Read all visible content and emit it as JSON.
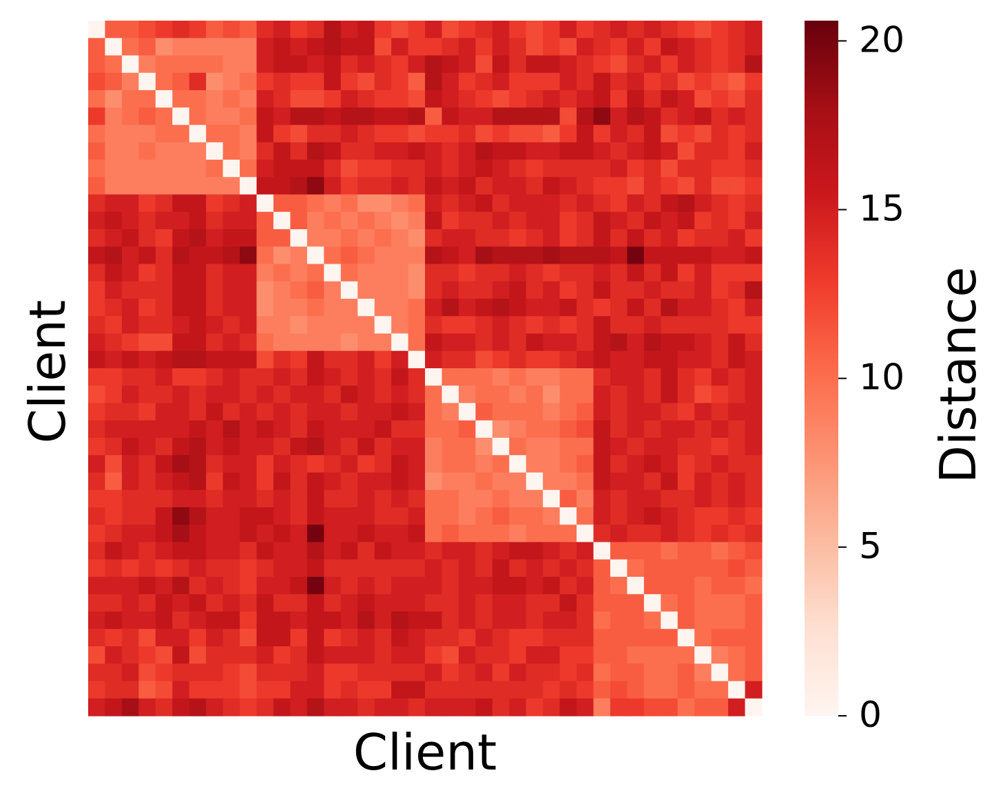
{
  "chart_data": {
    "type": "heatmap",
    "xlabel": "Client",
    "ylabel": "Client",
    "colorbar_label": "Distance",
    "colormap": "Reds",
    "zlim": [
      0,
      20.6
    ],
    "zticks": [
      0,
      5,
      10,
      15,
      20
    ],
    "z": [
      [
        0,
        11,
        11,
        12,
        13,
        14,
        13,
        11,
        12,
        11,
        14,
        15,
        13,
        14,
        17,
        15,
        16,
        13,
        12,
        13,
        15,
        12,
        13,
        14,
        15,
        13,
        12,
        13,
        15,
        13,
        14,
        15,
        14,
        15,
        14,
        13,
        12,
        13,
        14,
        15
      ],
      [
        11,
        0,
        10,
        11,
        8,
        9,
        9,
        9,
        9,
        9,
        15,
        16,
        15,
        16,
        17,
        16,
        16,
        12,
        15,
        13,
        13,
        14,
        15,
        13,
        15,
        14,
        12,
        13,
        12,
        15,
        14,
        13,
        15,
        13,
        16,
        15,
        14,
        13,
        14,
        15
      ],
      [
        11,
        10,
        0,
        9,
        10,
        10,
        10,
        10,
        9,
        9,
        15,
        16,
        16,
        15,
        16,
        14,
        15,
        14,
        13,
        15,
        17,
        16,
        15,
        12,
        16,
        14,
        16,
        16,
        15,
        14,
        13,
        12,
        14,
        15,
        13,
        15,
        14,
        13,
        14,
        17
      ],
      [
        12,
        11,
        9,
        0,
        10,
        11,
        14,
        8,
        9,
        10,
        13,
        14,
        13,
        13,
        16,
        13,
        12,
        14,
        13,
        11,
        17,
        15,
        13,
        14,
        15,
        13,
        13,
        13,
        15,
        14,
        16,
        14,
        15,
        13,
        14,
        12,
        13,
        12,
        11,
        13
      ],
      [
        10,
        8,
        10,
        10,
        0,
        10,
        10,
        9,
        10,
        9,
        15,
        14,
        12,
        12,
        13,
        15,
        14,
        13,
        13,
        12,
        16,
        15,
        14,
        13,
        12,
        13,
        14,
        15,
        14,
        15,
        16,
        13,
        16,
        14,
        16,
        15,
        12,
        13,
        12,
        14
      ],
      [
        13,
        9,
        10,
        11,
        10,
        0,
        10,
        9,
        9,
        10,
        16,
        15,
        17,
        17,
        16,
        17,
        17,
        16,
        16,
        17,
        11,
        16,
        15,
        15,
        17,
        17,
        17,
        17,
        12,
        17,
        19,
        15,
        17,
        16,
        14,
        15,
        16,
        14,
        15,
        14
      ],
      [
        10,
        9,
        9,
        9,
        10,
        10,
        0,
        10,
        10,
        9,
        16,
        13,
        12,
        14,
        14,
        15,
        14,
        13,
        13,
        12,
        13,
        13,
        14,
        12,
        13,
        12,
        12,
        11,
        13,
        16,
        13,
        15,
        14,
        16,
        12,
        13,
        12,
        14,
        13,
        14
      ],
      [
        11,
        9,
        9,
        10,
        9,
        9,
        9,
        0,
        10,
        9,
        14,
        16,
        14,
        17,
        16,
        14,
        14,
        15,
        15,
        16,
        15,
        14,
        15,
        17,
        16,
        16,
        15,
        15,
        16,
        16,
        15,
        14,
        15,
        16,
        15,
        12,
        14,
        14,
        13,
        15
      ],
      [
        10,
        9,
        9,
        9,
        9,
        9,
        9,
        10,
        0,
        10,
        15,
        16,
        16,
        16,
        14,
        12,
        13,
        13,
        14,
        14,
        15,
        14,
        15,
        16,
        15,
        14,
        13,
        14,
        14,
        14,
        14,
        15,
        13,
        14,
        12,
        14,
        14,
        13,
        13,
        14
      ],
      [
        11,
        9,
        9,
        9,
        9,
        9,
        9,
        9,
        9,
        0,
        16,
        16,
        17,
        19,
        15,
        13,
        14,
        14,
        15,
        14,
        16,
        15,
        16,
        14,
        15,
        15,
        14,
        16,
        15,
        14,
        13,
        13,
        12,
        14,
        13,
        12,
        14,
        12,
        12,
        13
      ],
      [
        14,
        15,
        15,
        13,
        14,
        16,
        16,
        13,
        14,
        15,
        0,
        11,
        11,
        10,
        9,
        10,
        8,
        8,
        9,
        10,
        15,
        14,
        15,
        16,
        14,
        15,
        15,
        15,
        14,
        15,
        14,
        13,
        15,
        14,
        16,
        17,
        15,
        14,
        13,
        14
      ],
      [
        15,
        16,
        15,
        14,
        15,
        15,
        16,
        14,
        15,
        15,
        11,
        0,
        11,
        9,
        10,
        9,
        10,
        9,
        8,
        9,
        16,
        13,
        14,
        14,
        15,
        14,
        15,
        15,
        13,
        14,
        16,
        15,
        14,
        16,
        15,
        16,
        13,
        14,
        13,
        15
      ],
      [
        14,
        15,
        16,
        14,
        13,
        16,
        17,
        15,
        16,
        16,
        11,
        11,
        0,
        9,
        9,
        10,
        9,
        10,
        9,
        8,
        14,
        15,
        15,
        14,
        14,
        13,
        14,
        15,
        13,
        14,
        16,
        14,
        16,
        14,
        15,
        13,
        14,
        14,
        15,
        13
      ],
      [
        16,
        17,
        15,
        16,
        14,
        17,
        16,
        16,
        17,
        19,
        10,
        8,
        9,
        0,
        10,
        11,
        10,
        9,
        9,
        9,
        17,
        16,
        15,
        18,
        17,
        17,
        17,
        18,
        17,
        17,
        17,
        16,
        20,
        16,
        16,
        16,
        16,
        15,
        15,
        16
      ],
      [
        14,
        16,
        15,
        13,
        14,
        16,
        16,
        14,
        15,
        15,
        9,
        10,
        9,
        10,
        0,
        10,
        9,
        9,
        9,
        8,
        14,
        14,
        13,
        14,
        14,
        15,
        14,
        13,
        14,
        14,
        15,
        14,
        16,
        14,
        16,
        13,
        15,
        13,
        13,
        13
      ],
      [
        13,
        15,
        14,
        14,
        14,
        16,
        16,
        14,
        15,
        15,
        8,
        9,
        10,
        11,
        9,
        0,
        9,
        9,
        9,
        8,
        14,
        15,
        14,
        14,
        15,
        16,
        14,
        15,
        13,
        14,
        16,
        14,
        14,
        15,
        14,
        14,
        15,
        13,
        14,
        17
      ],
      [
        13,
        14,
        15,
        13,
        14,
        16,
        16,
        14,
        15,
        15,
        8,
        9,
        9,
        10,
        9,
        9,
        0,
        9,
        9,
        10,
        15,
        17,
        15,
        16,
        17,
        16,
        15,
        15,
        16,
        14,
        13,
        14,
        16,
        14,
        17,
        15,
        15,
        14,
        13,
        15
      ],
      [
        14,
        13,
        15,
        14,
        14,
        15,
        16,
        15,
        14,
        15,
        9,
        9,
        8,
        9,
        9,
        9,
        9,
        0,
        9,
        10,
        14,
        13,
        13,
        14,
        15,
        14,
        13,
        14,
        13,
        14,
        16,
        14,
        14,
        15,
        14,
        14,
        14,
        14,
        13,
        13
      ],
      [
        15,
        14,
        13,
        12,
        12,
        16,
        16,
        14,
        15,
        14,
        10,
        9,
        9,
        9,
        9,
        8,
        9,
        9,
        0,
        10,
        16,
        15,
        15,
        14,
        15,
        14,
        16,
        15,
        15,
        14,
        16,
        17,
        15,
        17,
        16,
        16,
        15,
        14,
        16,
        14
      ],
      [
        16,
        15,
        16,
        15,
        16,
        17,
        17,
        16,
        16,
        16,
        12,
        14,
        13,
        16,
        14,
        14,
        15,
        13,
        15,
        0,
        15,
        14,
        14,
        12,
        13,
        14,
        13,
        13,
        14,
        15,
        16,
        15,
        15,
        16,
        16,
        15,
        15,
        14,
        16,
        15
      ],
      [
        13,
        13,
        14,
        14,
        15,
        13,
        13,
        14,
        15,
        14,
        14,
        15,
        14,
        16,
        15,
        14,
        15,
        14,
        16,
        14,
        0,
        10,
        10,
        10,
        9,
        10,
        9,
        9,
        10,
        10,
        14,
        15,
        15,
        14,
        16,
        14,
        13,
        15,
        14,
        15
      ],
      [
        12,
        13,
        15,
        14,
        14,
        15,
        14,
        15,
        15,
        14,
        15,
        14,
        15,
        15,
        14,
        16,
        15,
        14,
        15,
        14,
        10,
        0,
        9,
        10,
        10,
        9,
        10,
        8,
        10,
        10,
        15,
        14,
        15,
        14,
        16,
        14,
        12,
        13,
        14,
        15
      ],
      [
        13,
        14,
        14,
        13,
        15,
        15,
        14,
        16,
        14,
        15,
        14,
        15,
        14,
        15,
        15,
        14,
        15,
        15,
        16,
        15,
        10,
        9,
        0,
        11,
        10,
        10,
        10,
        9,
        10,
        11,
        15,
        14,
        15,
        15,
        14,
        13,
        15,
        14,
        15,
        15
      ],
      [
        14,
        15,
        15,
        15,
        15,
        15,
        16,
        15,
        17,
        15,
        16,
        15,
        14,
        16,
        15,
        15,
        15,
        16,
        14,
        14,
        10,
        10,
        11,
        0,
        8,
        9,
        10,
        10,
        11,
        12,
        16,
        14,
        15,
        14,
        15,
        15,
        14,
        15,
        14,
        15
      ],
      [
        13,
        14,
        16,
        15,
        14,
        16,
        17,
        15,
        16,
        15,
        15,
        14,
        16,
        17,
        15,
        14,
        16,
        14,
        15,
        15,
        9,
        10,
        10,
        8,
        0,
        10,
        9,
        9,
        10,
        10,
        16,
        15,
        14,
        15,
        15,
        14,
        14,
        13,
        14,
        15
      ],
      [
        15,
        12,
        15,
        14,
        16,
        18,
        17,
        14,
        15,
        15,
        13,
        15,
        14,
        13,
        14,
        15,
        13,
        14,
        16,
        15,
        9,
        10,
        10,
        9,
        10,
        0,
        9,
        9,
        10,
        11,
        16,
        14,
        15,
        16,
        15,
        13,
        14,
        15,
        14,
        14
      ],
      [
        14,
        11,
        15,
        14,
        15,
        16,
        17,
        13,
        16,
        15,
        13,
        16,
        14,
        16,
        15,
        14,
        15,
        15,
        16,
        15,
        8,
        9,
        9,
        10,
        9,
        9,
        0,
        9,
        9,
        10,
        16,
        15,
        15,
        14,
        16,
        13,
        15,
        14,
        15,
        14
      ],
      [
        13,
        13,
        14,
        14,
        14,
        15,
        15,
        14,
        15,
        15,
        14,
        15,
        14,
        16,
        14,
        14,
        15,
        14,
        15,
        14,
        10,
        10,
        9,
        9,
        10,
        9,
        9,
        0,
        11,
        9,
        15,
        14,
        15,
        15,
        14,
        14,
        15,
        14,
        15,
        14
      ],
      [
        14,
        13,
        14,
        14,
        16,
        19,
        17,
        15,
        15,
        16,
        16,
        15,
        14,
        16,
        15,
        15,
        15,
        14,
        14,
        15,
        10,
        10,
        9,
        10,
        11,
        10,
        10,
        9,
        0,
        10,
        15,
        14,
        15,
        16,
        15,
        14,
        13,
        13,
        14,
        13
      ],
      [
        13,
        14,
        15,
        15,
        16,
        18,
        16,
        15,
        15,
        16,
        15,
        16,
        15,
        20,
        15,
        15,
        16,
        15,
        15,
        16,
        10,
        11,
        10,
        10,
        10,
        9,
        10,
        10,
        10,
        0,
        14,
        15,
        14,
        14,
        15,
        14,
        13,
        14,
        13,
        14
      ],
      [
        14,
        16,
        15,
        14,
        15,
        16,
        16,
        15,
        15,
        14,
        16,
        15,
        15,
        17,
        15,
        16,
        14,
        16,
        15,
        15,
        14,
        15,
        15,
        14,
        15,
        16,
        16,
        15,
        14,
        15,
        0,
        11,
        11,
        11,
        10,
        11,
        11,
        10,
        11,
        12
      ],
      [
        13,
        14,
        13,
        14,
        13,
        14,
        15,
        14,
        14,
        13,
        14,
        15,
        15,
        16,
        14,
        14,
        14,
        14,
        14,
        14,
        15,
        14,
        15,
        14,
        16,
        14,
        15,
        14,
        15,
        14,
        11,
        0,
        10,
        11,
        11,
        11,
        11,
        11,
        12,
        11
      ],
      [
        15,
        15,
        15,
        16,
        15,
        17,
        14,
        15,
        14,
        13,
        15,
        15,
        16,
        20,
        15,
        14,
        15,
        14,
        15,
        15,
        15,
        14,
        15,
        15,
        16,
        16,
        15,
        16,
        14,
        15,
        11,
        10,
        0,
        11,
        11,
        11,
        10,
        11,
        11,
        10
      ],
      [
        14,
        14,
        15,
        14,
        16,
        15,
        16,
        14,
        15,
        14,
        16,
        14,
        14,
        16,
        14,
        15,
        16,
        15,
        15,
        15,
        14,
        14,
        15,
        14,
        15,
        15,
        14,
        14,
        16,
        14,
        11,
        11,
        11,
        0,
        10,
        11,
        10,
        10,
        10,
        11
      ],
      [
        15,
        16,
        15,
        15,
        16,
        14,
        15,
        16,
        16,
        13,
        16,
        16,
        15,
        16,
        16,
        15,
        17,
        15,
        17,
        16,
        16,
        14,
        15,
        14,
        15,
        15,
        14,
        15,
        15,
        14,
        10,
        11,
        11,
        10,
        0,
        11,
        10,
        10,
        10,
        11
      ],
      [
        14,
        13,
        14,
        12,
        15,
        15,
        13,
        15,
        14,
        12,
        16,
        16,
        13,
        16,
        13,
        14,
        15,
        14,
        16,
        15,
        14,
        14,
        13,
        15,
        14,
        13,
        13,
        14,
        14,
        14,
        11,
        11,
        11,
        11,
        11,
        0,
        10,
        11,
        11,
        11
      ],
      [
        12,
        15,
        14,
        13,
        12,
        16,
        12,
        14,
        14,
        14,
        15,
        13,
        14,
        16,
        15,
        15,
        15,
        14,
        15,
        15,
        13,
        12,
        15,
        14,
        14,
        13,
        15,
        15,
        13,
        13,
        11,
        11,
        10,
        10,
        10,
        10,
        0,
        9,
        10,
        11
      ],
      [
        14,
        14,
        15,
        12,
        13,
        14,
        14,
        14,
        13,
        12,
        14,
        14,
        14,
        15,
        13,
        13,
        14,
        14,
        14,
        14,
        15,
        13,
        14,
        15,
        13,
        15,
        14,
        14,
        13,
        14,
        10,
        11,
        11,
        10,
        10,
        11,
        9,
        0,
        10,
        11
      ],
      [
        13,
        14,
        14,
        11,
        12,
        15,
        13,
        13,
        13,
        12,
        13,
        13,
        15,
        15,
        13,
        14,
        13,
        13,
        16,
        16,
        14,
        14,
        14,
        14,
        14,
        14,
        14,
        13,
        14,
        13,
        11,
        12,
        11,
        10,
        10,
        11,
        10,
        10,
        0,
        15
      ],
      [
        15,
        16,
        18,
        15,
        14,
        16,
        17,
        15,
        14,
        13,
        14,
        16,
        15,
        17,
        15,
        15,
        14,
        15,
        15,
        14,
        15,
        15,
        15,
        16,
        14,
        15,
        13,
        14,
        16,
        15,
        9,
        13,
        13,
        12,
        12,
        10,
        11,
        11,
        15,
        0
      ]
    ]
  }
}
